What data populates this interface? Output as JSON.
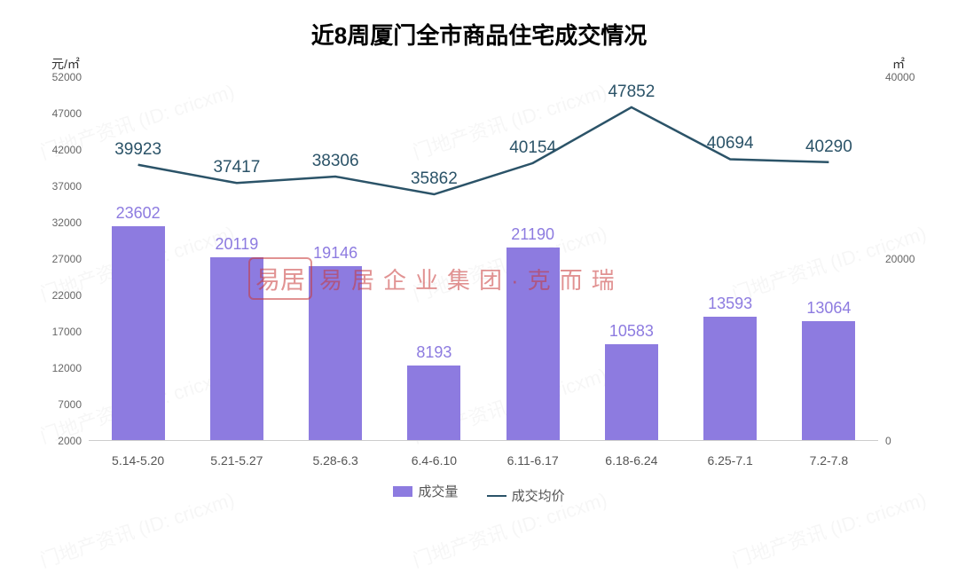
{
  "chart": {
    "type": "bar+line",
    "title": "近8周厦门全市商品住宅成交情况",
    "title_fontsize": 26,
    "title_fontweight": "bold",
    "title_color": "#000000",
    "background_color": "#ffffff",
    "categories": [
      "5.14-5.20",
      "5.21-5.27",
      "5.28-6.3",
      "6.4-6.10",
      "6.11-6.17",
      "6.18-6.24",
      "6.25-7.1",
      "7.2-7.8"
    ],
    "bar_series": {
      "name": "成交量",
      "values": [
        23602,
        20119,
        19146,
        8193,
        21190,
        10583,
        13593,
        13064
      ],
      "color": "#8d7be0",
      "label_color": "#8d7be0",
      "label_fontsize": 18,
      "bar_width_ratio": 0.54,
      "y_axis": "right",
      "y_axis_label": "㎡",
      "ylim": [
        0,
        40000
      ],
      "yticks": [
        0,
        20000,
        40000
      ]
    },
    "line_series": {
      "name": "成交均价",
      "values": [
        39923,
        37417,
        38306,
        35862,
        40154,
        47852,
        40694,
        40290
      ],
      "color": "#2b5368",
      "label_color": "#2b5368",
      "label_fontsize": 19,
      "line_width": 2.5,
      "marker": "none",
      "y_axis": "left",
      "y_axis_label": "元/㎡",
      "ylim": [
        2000,
        52000
      ],
      "yticks": [
        2000,
        7000,
        12000,
        17000,
        22000,
        27000,
        32000,
        37000,
        42000,
        47000,
        52000
      ]
    },
    "axis_fontsize": 12,
    "axis_color": "#666666",
    "x_label_fontsize": 14,
    "x_label_color": "#555555",
    "legend": {
      "items": [
        "成交量",
        "成交均价"
      ],
      "position": "bottom-center",
      "fontsize": 15,
      "color": "#555555"
    },
    "watermark_center": "易居企业集团·克而瑞",
    "watermark_stamp": "易居",
    "watermark_bg": "门地产资讯  (ID: cricxm)"
  }
}
